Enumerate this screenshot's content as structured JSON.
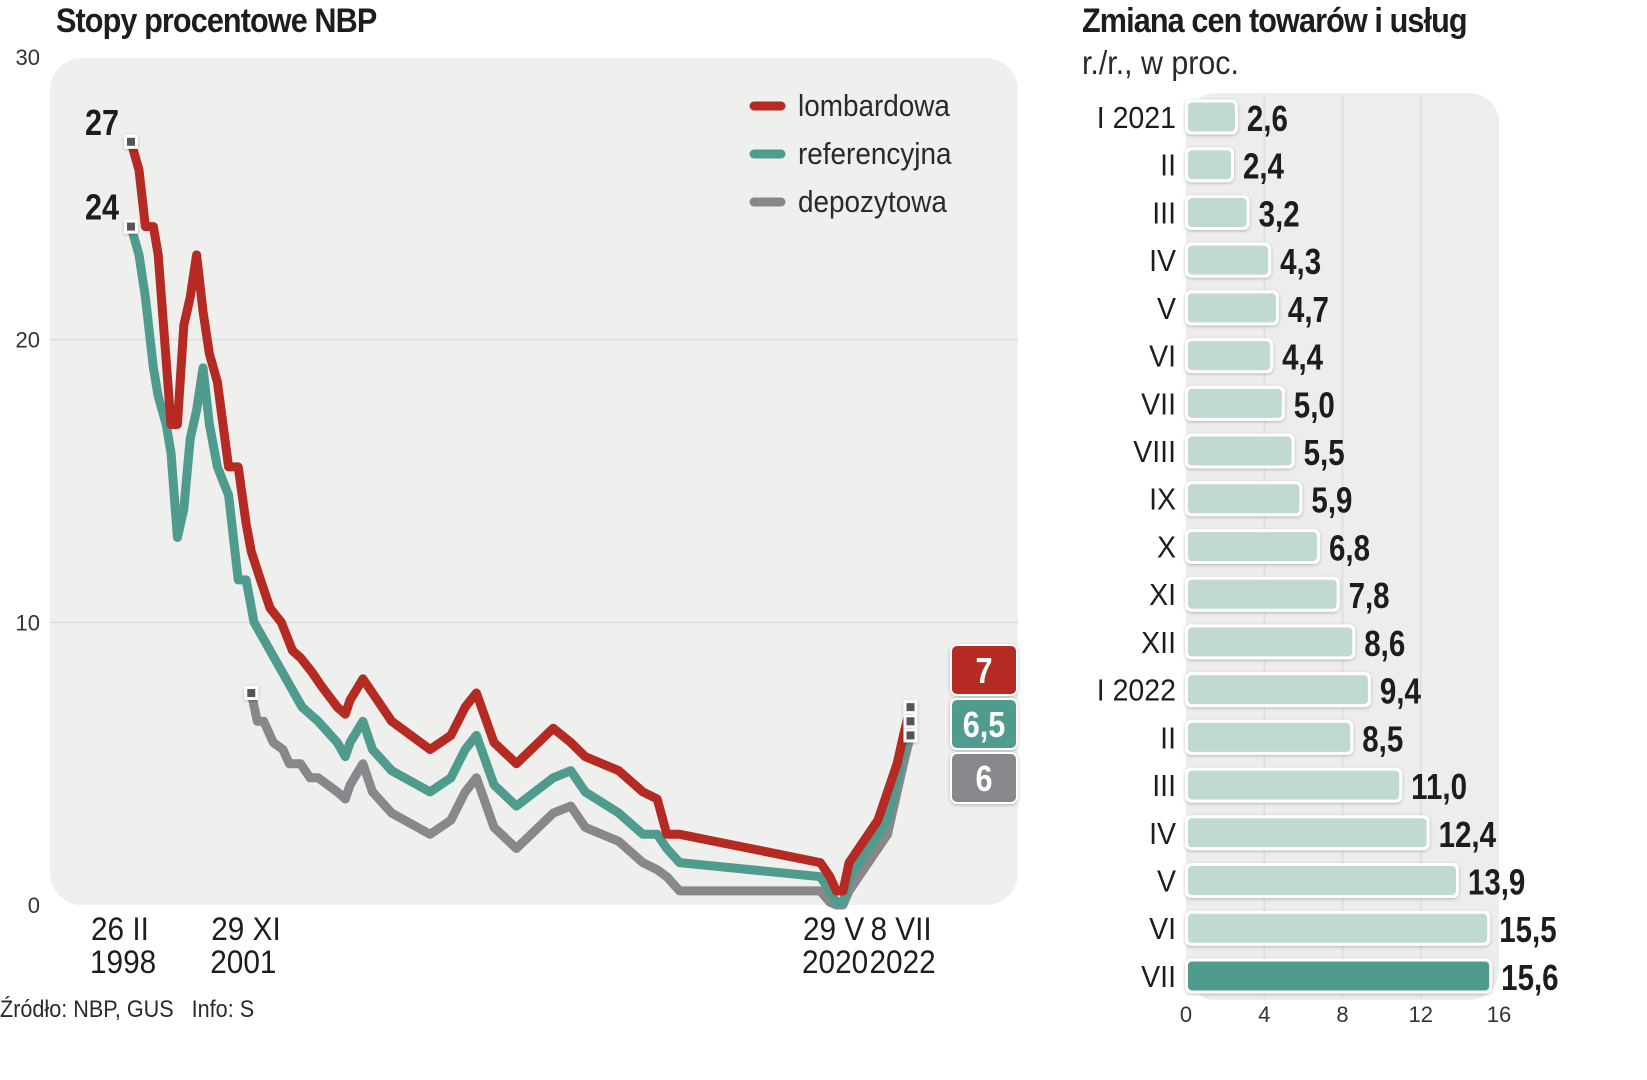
{
  "chart_data": [
    {
      "type": "line",
      "title": "Stopy procentowe NBP",
      "xlabel": "",
      "ylabel": "",
      "ylim": [
        0,
        30
      ],
      "yticks": [
        "0",
        "10",
        "20",
        "30"
      ],
      "grid": true,
      "legend_position": "top-right",
      "x_tick_labels": [
        {
          "x": 1998.15,
          "line1": "26 II",
          "line2": "1998"
        },
        {
          "x": 2001.91,
          "line1": "29 XI",
          "line2": "2001"
        },
        {
          "x": 2020.41,
          "line1": "29 V",
          "line2": "2020"
        },
        {
          "x": 2022.52,
          "line1": "8 VII",
          "line2": "2022"
        }
      ],
      "xlim": [
        1997.0,
        2024.0
      ],
      "series": [
        {
          "name": "lombardowa",
          "color": "#b52a22",
          "start_label": "27",
          "end_label": "7",
          "x": [
            1998.15,
            1998.4,
            1998.6,
            1998.85,
            1999.0,
            1999.4,
            1999.6,
            1999.8,
            2000.0,
            2000.2,
            2000.4,
            2000.6,
            2000.85,
            2001.2,
            2001.5,
            2001.75,
            2001.91,
            2002.2,
            2002.5,
            2002.85,
            2003.2,
            2003.45,
            2003.8,
            2004.1,
            2004.6,
            2004.85,
            2005.0,
            2005.4,
            2005.7,
            2006.3,
            2007.5,
            2008.15,
            2008.6,
            2008.95,
            2009.5,
            2010.2,
            2011.35,
            2011.9,
            2012.35,
            2013.4,
            2014.15,
            2014.6,
            2014.9,
            2015.3,
            2019.7,
            2020.0,
            2020.2,
            2020.41,
            2020.6,
            2021.2,
            2021.5,
            2021.8,
            2022.1,
            2022.3,
            2022.52
          ],
          "y": [
            27.0,
            26.0,
            24.0,
            24.0,
            23.0,
            17.0,
            17.0,
            20.5,
            21.5,
            23.0,
            21.0,
            19.5,
            18.5,
            15.5,
            15.5,
            13.5,
            12.5,
            11.5,
            10.5,
            10.0,
            9.0,
            8.75,
            8.25,
            7.75,
            7.0,
            6.75,
            7.25,
            8.0,
            7.5,
            6.5,
            5.5,
            6.0,
            7.0,
            7.5,
            5.75,
            5.0,
            6.25,
            5.75,
            5.25,
            4.75,
            4.0,
            3.75,
            2.5,
            2.5,
            1.5,
            1.0,
            0.5,
            0.5,
            1.5,
            2.5,
            3.0,
            4.0,
            5.0,
            6.0,
            7.0
          ]
        },
        {
          "name": "referencyjna",
          "color": "#4f9c8f",
          "start_label": "24",
          "end_label": "6,5",
          "x": [
            1998.15,
            1998.4,
            1998.6,
            1998.85,
            1999.0,
            1999.25,
            1999.4,
            1999.6,
            1999.8,
            2000.0,
            2000.2,
            2000.4,
            2000.6,
            2000.85,
            2001.2,
            2001.5,
            2001.75,
            2002.0,
            2002.5,
            2003.0,
            2003.5,
            2004.0,
            2004.6,
            2004.85,
            2005.0,
            2005.4,
            2005.7,
            2006.3,
            2007.5,
            2008.15,
            2008.6,
            2008.95,
            2009.5,
            2010.2,
            2011.35,
            2011.9,
            2012.35,
            2013.4,
            2014.15,
            2014.6,
            2014.9,
            2015.3,
            2019.7,
            2020.0,
            2020.2,
            2020.41,
            2020.6,
            2021.2,
            2021.5,
            2021.8,
            2022.1,
            2022.3,
            2022.52
          ],
          "y": [
            24.0,
            23.0,
            21.5,
            19.0,
            18.0,
            17.0,
            16.0,
            13.0,
            14.0,
            16.5,
            17.5,
            19.0,
            17.0,
            15.5,
            14.5,
            11.5,
            11.5,
            10.0,
            9.0,
            8.0,
            7.0,
            6.5,
            5.75,
            5.25,
            5.75,
            6.5,
            5.5,
            4.75,
            4.0,
            4.5,
            5.5,
            6.0,
            4.25,
            3.5,
            4.5,
            4.75,
            4.0,
            3.25,
            2.5,
            2.5,
            2.0,
            1.5,
            1.0,
            0.5,
            0.1,
            0.1,
            1.0,
            2.0,
            2.5,
            3.0,
            4.5,
            5.5,
            6.5
          ]
        },
        {
          "name": "depozytowa",
          "color": "#88888c",
          "start_label": "",
          "end_label": "6",
          "x": [
            2001.91,
            2002.1,
            2002.3,
            2002.6,
            2002.9,
            2003.1,
            2003.45,
            2003.75,
            2004.0,
            2004.3,
            2004.6,
            2004.85,
            2005.0,
            2005.4,
            2005.7,
            2006.3,
            2007.5,
            2008.15,
            2008.6,
            2008.95,
            2009.5,
            2010.2,
            2011.35,
            2011.9,
            2012.35,
            2013.4,
            2014.15,
            2014.6,
            2014.9,
            2015.3,
            2019.7,
            2020.0,
            2020.2,
            2020.41,
            2020.6,
            2021.2,
            2021.5,
            2021.8,
            2022.1,
            2022.3,
            2022.52
          ],
          "y": [
            7.5,
            6.5,
            6.5,
            5.75,
            5.5,
            5.0,
            5.0,
            4.5,
            4.5,
            4.25,
            4.0,
            3.75,
            4.25,
            5.0,
            4.0,
            3.25,
            2.5,
            3.0,
            4.0,
            4.5,
            2.75,
            2.0,
            3.25,
            3.5,
            2.75,
            2.25,
            1.5,
            1.25,
            1.0,
            0.5,
            0.5,
            0.1,
            0.0,
            0.0,
            0.5,
            1.5,
            2.0,
            2.5,
            4.0,
            5.0,
            6.0
          ]
        }
      ],
      "annotations": [
        "27",
        "24"
      ],
      "end_badges": [
        "7",
        "6,5",
        "6"
      ]
    },
    {
      "type": "bar",
      "orientation": "horizontal",
      "title": "Zmiana cen towarów i usług",
      "subtitle": "r./r., w proc.",
      "categories": [
        "I 2021",
        "II",
        "III",
        "IV",
        "V",
        "VI",
        "VII",
        "VIII",
        "IX",
        "X",
        "XI",
        "XII",
        "I 2022",
        "II",
        "III",
        "IV",
        "V",
        "VI",
        "VII"
      ],
      "values": [
        2.6,
        2.4,
        3.2,
        4.3,
        4.7,
        4.4,
        5.0,
        5.5,
        5.9,
        6.8,
        7.8,
        8.6,
        9.4,
        8.5,
        11.0,
        12.4,
        13.9,
        15.5,
        15.6
      ],
      "value_labels": [
        "2,6",
        "2,4",
        "3,2",
        "4,3",
        "4,7",
        "4,4",
        "5,0",
        "5,5",
        "5,9",
        "6,8",
        "7,8",
        "8,6",
        "9,4",
        "8,5",
        "11,0",
        "12,4",
        "13,9",
        "15,5",
        "15,6"
      ],
      "highlight_index": 18,
      "bar_color": "#c0d9d2",
      "highlight_color": "#4f9c8f",
      "xlim": [
        0,
        16
      ],
      "xticks": [
        "0",
        "4",
        "8",
        "12",
        "16"
      ],
      "grid": true
    }
  ],
  "footer": {
    "source": "Źródło: NBP, GUS   Info: S"
  }
}
